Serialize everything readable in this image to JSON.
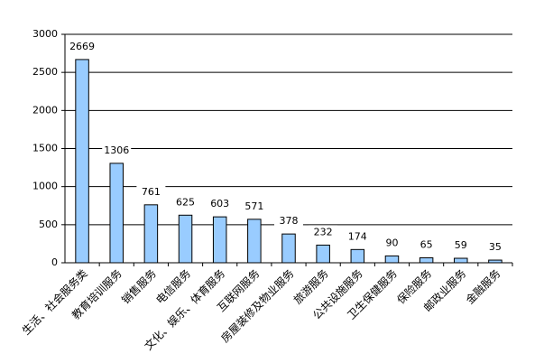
{
  "chart_data": {
    "type": "bar",
    "categories": [
      "生活、社会服务类",
      "教育培训服务",
      "销售服务",
      "电信服务",
      "文化、娱乐、体育服务",
      "互联网服务",
      "房屋装修及物业服务",
      "旅游服务",
      "公共设施服务",
      "卫生保健服务",
      "保险服务",
      "邮政业服务",
      "金融服务"
    ],
    "values": [
      2669,
      1306,
      761,
      625,
      603,
      571,
      378,
      232,
      174,
      90,
      65,
      59,
      35
    ],
    "color": "#99ccff",
    "ylim": [
      0,
      3000
    ],
    "yticks": [
      0,
      500,
      1000,
      1500,
      2000,
      2500,
      3000
    ],
    "grid": true
  }
}
